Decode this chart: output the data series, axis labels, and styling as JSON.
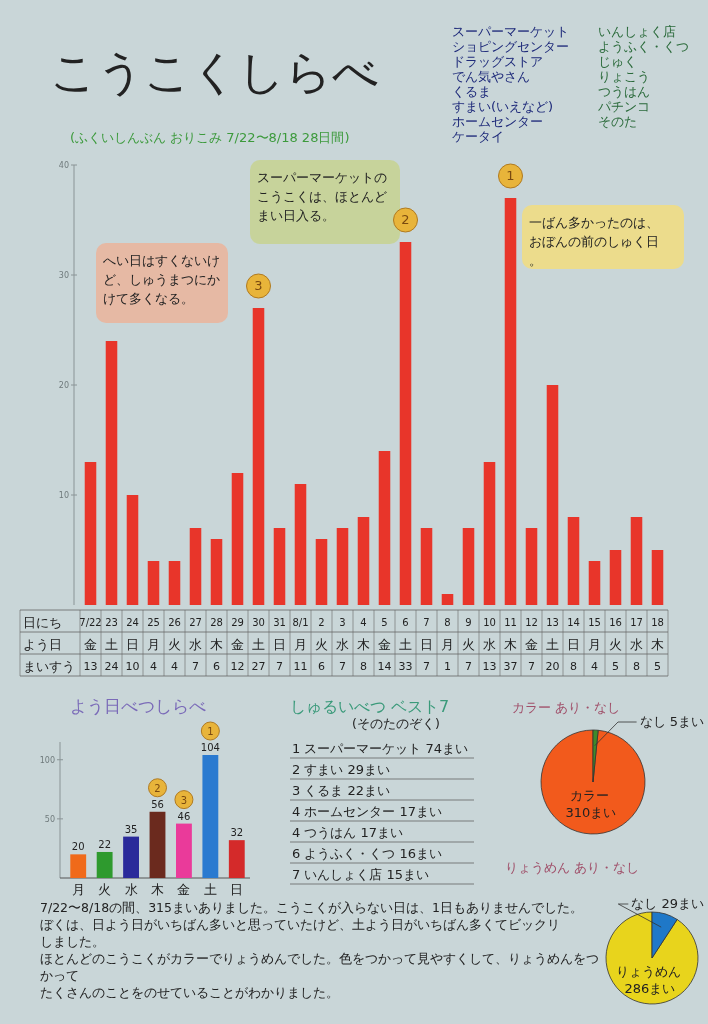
{
  "chart_data": [
    {
      "type": "bar",
      "title": "こうこくしらべ",
      "subtitle": "(ふくいしんぶん おりこみ 7/22〜8/18 28日間)",
      "categories": [
        "7/22",
        "23",
        "24",
        "25",
        "26",
        "27",
        "28",
        "29",
        "30",
        "31",
        "8/1",
        "2",
        "3",
        "4",
        "5",
        "6",
        "7",
        "8",
        "9",
        "10",
        "11",
        "12",
        "13",
        "14",
        "15",
        "16",
        "17",
        "18"
      ],
      "values": [
        13,
        24,
        10,
        4,
        4,
        7,
        6,
        12,
        27,
        7,
        11,
        6,
        7,
        8,
        14,
        33,
        7,
        1,
        7,
        13,
        37,
        7,
        20,
        8,
        4,
        5,
        8,
        5
      ],
      "color": "#e8352a",
      "ylim": [
        0,
        40
      ],
      "yticks": [
        10,
        20,
        30,
        40
      ],
      "data_labels": true,
      "annotations": [
        "へい日はすくないけど、しゅうまつにかけて多くなる。",
        "スーパーマーケットのこうこくは、ほとんどまい日入る。",
        "一ばん多かったのは、おぼんの前のしゅく日。",
        "日にち",
        "よう日",
        "まいすう",
        "スーパーマーケット",
        "ショピングセンター",
        "ドラッグストア",
        "でん気やさん",
        "くるま",
        "すまい(いえなど)",
        "ホームセンター",
        "ケータイ",
        "いんしょく店",
        "ようふく・くつ",
        "じゅく",
        "りょこう",
        "つうはん",
        "パチンコ",
        "そのた",
        "金",
        "土",
        "日",
        "月",
        "火",
        "水",
        "木",
        "金",
        "土",
        "日",
        "月",
        "火",
        "水",
        "木",
        "金",
        "土",
        "日",
        "月",
        "火",
        "水",
        "木",
        "金",
        "土",
        "日",
        "月",
        "火",
        "水",
        "木",
        {
          "text": "1",
          "x": "11",
          "y": 37
        },
        {
          "text": "2",
          "x": "6",
          "y": 33
        },
        {
          "text": "3",
          "x": "30",
          "y": 27
        }
      ]
    },
    {
      "type": "bar",
      "title": "よう日べつしらべ",
      "categories": [
        "月",
        "火",
        "水",
        "木",
        "金",
        "土",
        "日"
      ],
      "values": [
        20,
        22,
        35,
        56,
        46,
        104,
        32
      ],
      "colors": [
        "#f06a1a",
        "#2e9a2e",
        "#2a2a9a",
        "#6b2a1e",
        "#ea3a9a",
        "#2a7ad0",
        "#d42a2a"
      ],
      "ylim": [
        0,
        115
      ],
      "yticks": [
        50,
        100
      ],
      "data_labels": true,
      "annotations": [
        {
          "text": "1",
          "x": "土",
          "y": 104
        },
        {
          "text": "2",
          "x": "木",
          "y": 56
        },
        {
          "text": "3",
          "x": "金",
          "y": 46
        }
      ]
    },
    {
      "type": "other",
      "title": "しゅるいべつ ベスト7",
      "subtitle": "(そのたのぞく)",
      "annotations": [
        "1 スーパーマーケット 74まい",
        "2 すまい 29まい",
        "3 くるま 22まい",
        "4 ホームセンター 17まい",
        "4 つうはん 17まい",
        "6 ようふく・くつ 16まい",
        "7 いんしょく店 15まい"
      ]
    },
    {
      "type": "pie",
      "title": "カラー あり・なし",
      "categories": [
        "カラー",
        "なし"
      ],
      "values": [
        310,
        5
      ],
      "colors": [
        "#f25a1c",
        "#3f8a2a"
      ],
      "value_labels": [
        "310まい",
        "5まい"
      ]
    },
    {
      "type": "pie",
      "title": "りょうめん あり・なし",
      "categories": [
        "りょうめん",
        "なし"
      ],
      "values": [
        286,
        29
      ],
      "colors": [
        "#e8d41c",
        "#1f78c8"
      ],
      "value_labels": [
        "286まい",
        "29まい"
      ]
    },
    {
      "type": "other",
      "annotations": [
        "7/22〜8/18の間、315まいありました。こうこくが入らない日は、1日もありませんでした。",
        "ぼくは、日よう日がいちばん多いと思っていたけど、土よう日がいちばん多くてビックリ",
        "しました。",
        "ほとんどのこうこくがカラーでりょうめんでした。色をつかって見やすくして、りょうめんをつかって",
        "たくさんのことをのせていることがわかりました。"
      ]
    }
  ]
}
